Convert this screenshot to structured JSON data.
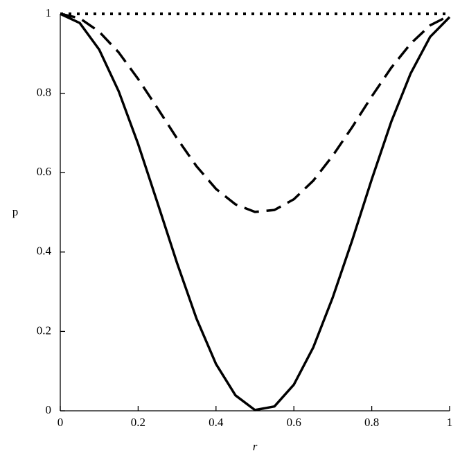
{
  "chart_data": {
    "type": "line",
    "x_label": "r",
    "y_label": "p",
    "x": [
      0,
      0.05,
      0.1,
      0.15,
      0.2,
      0.25,
      0.3,
      0.35,
      0.4,
      0.45,
      0.5,
      0.55,
      0.6,
      0.65,
      0.7,
      0.75,
      0.8,
      0.85,
      0.9,
      0.95,
      1
    ],
    "series": [
      {
        "color": "#000000",
        "dash": "solid",
        "values": [
          1,
          0.977,
          0.91,
          0.805,
          0.672,
          0.523,
          0.372,
          0.232,
          0.118,
          0.039,
          0.002,
          0.011,
          0.066,
          0.16,
          0.286,
          0.43,
          0.583,
          0.728,
          0.85,
          0.942,
          0.992
        ]
      },
      {
        "color": "#000000",
        "dash": "dashed",
        "values": [
          1,
          0.989,
          0.955,
          0.903,
          0.836,
          0.762,
          0.686,
          0.616,
          0.559,
          0.52,
          0.501,
          0.506,
          0.533,
          0.58,
          0.643,
          0.715,
          0.792,
          0.864,
          0.925,
          0.971,
          0.996
        ]
      },
      {
        "color": "#000000",
        "dash": "dotted",
        "values": [
          1,
          1,
          1,
          1,
          1,
          1,
          1,
          1,
          1,
          1,
          1,
          1,
          1,
          1,
          1,
          1,
          1,
          1,
          1,
          1,
          1
        ]
      }
    ],
    "xlim": [
      0,
      1
    ],
    "ylim": [
      0,
      1
    ],
    "xticks": [
      0,
      0.2,
      0.4,
      0.6,
      0.8,
      1
    ],
    "yticks": [
      0,
      0.2,
      0.4,
      0.6,
      0.8,
      1
    ]
  }
}
